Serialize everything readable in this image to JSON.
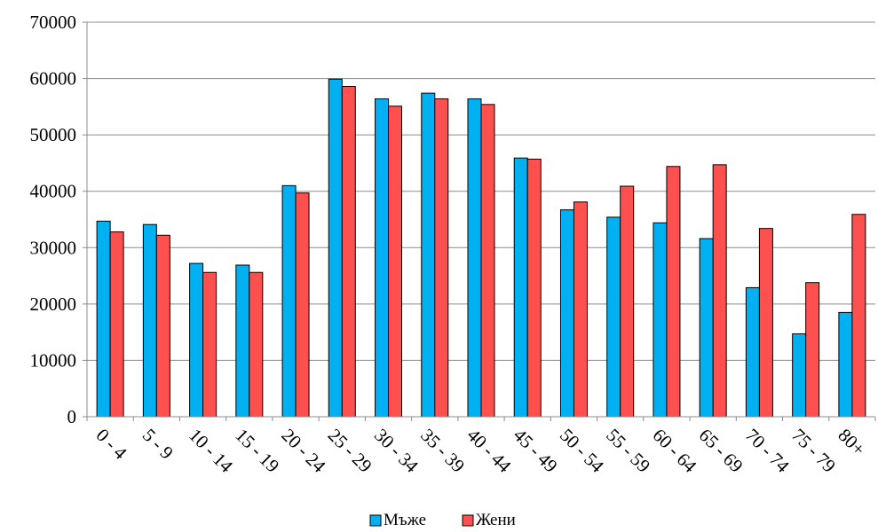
{
  "chart_data": {
    "type": "bar",
    "categories": [
      "0 - 4",
      "5 - 9",
      "10 - 14",
      "15 - 19",
      "20 - 24",
      "25 - 29",
      "30 - 34",
      "35 - 39",
      "40 - 44",
      "45 - 49",
      "50 - 54",
      "55 - 59",
      "60 - 64",
      "65 - 69",
      "70 - 74",
      "75 - 79",
      "80+"
    ],
    "series": [
      {
        "name": "Мъже",
        "color": "#00B0F0",
        "values": [
          34700,
          34100,
          27200,
          26900,
          41000,
          59900,
          56400,
          57400,
          56400,
          45900,
          36700,
          35400,
          34400,
          31600,
          22900,
          14700,
          18500
        ]
      },
      {
        "name": "Жени",
        "color": "#FF5050",
        "values": [
          32800,
          32200,
          25600,
          25600,
          39700,
          58600,
          55100,
          56400,
          55400,
          45700,
          38100,
          40900,
          44400,
          44700,
          33400,
          23800,
          35900
        ]
      }
    ],
    "ylim": [
      0,
      70000
    ],
    "yticks": [
      0,
      10000,
      20000,
      30000,
      40000,
      50000,
      60000,
      70000
    ],
    "grid": true,
    "legend_position": "bottom"
  }
}
